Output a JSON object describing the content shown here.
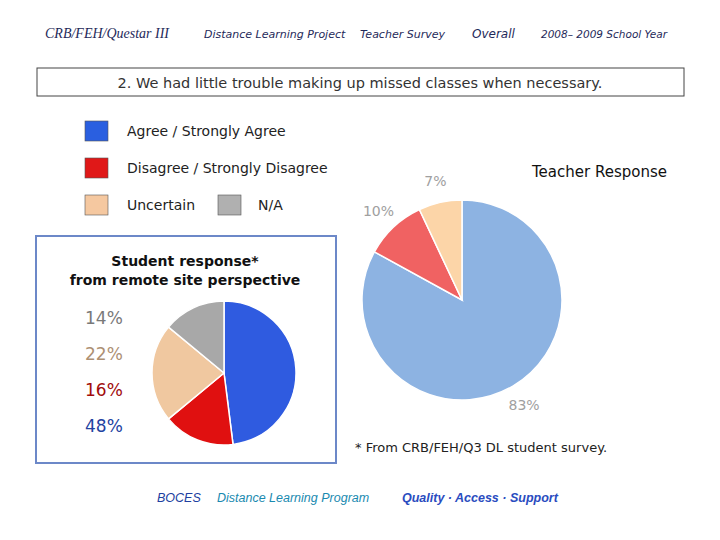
{
  "header": [
    "CRB/FEH/Questar III",
    "Distance Learning Project",
    "Teacher Survey",
    "Overall",
    "2008– 2009 School Year"
  ],
  "question": "2. We had little trouble making up missed classes when necessary.",
  "key": [
    {
      "label": "Agree / Strongly Agree",
      "color": "#2a5fe0"
    },
    {
      "label": "Disagree / Strongly Disagree",
      "color": "#e01818"
    },
    {
      "label": "Uncertain",
      "color": "#f5c8a0"
    },
    {
      "label": "N/A",
      "color": "#b0b0b0"
    }
  ],
  "chart_data": [
    {
      "type": "pie",
      "title": "Teacher Response",
      "values": [
        83,
        10,
        7
      ],
      "value_labels": [
        "83%",
        "10%",
        "7%"
      ],
      "colors": [
        "#8db3e2",
        "#f06262",
        "#fcd5a8"
      ],
      "data_labels": true
    },
    {
      "type": "pie",
      "title": "Student response*\nfrom remote site perspective",
      "values": [
        48,
        16,
        22,
        14
      ],
      "value_labels": [
        "48%",
        "16%",
        "22%",
        "14%"
      ],
      "colors": [
        "#2f5be0",
        "#e01010",
        "#f0c8a0",
        "#a8a8a8"
      ],
      "data_labels": true
    }
  ],
  "footnote": "* From CRB/FEH/Q3 DL student survey.",
  "footer": [
    "BOCES",
    "Distance Learning Program",
    "Quality · Access · Support"
  ]
}
